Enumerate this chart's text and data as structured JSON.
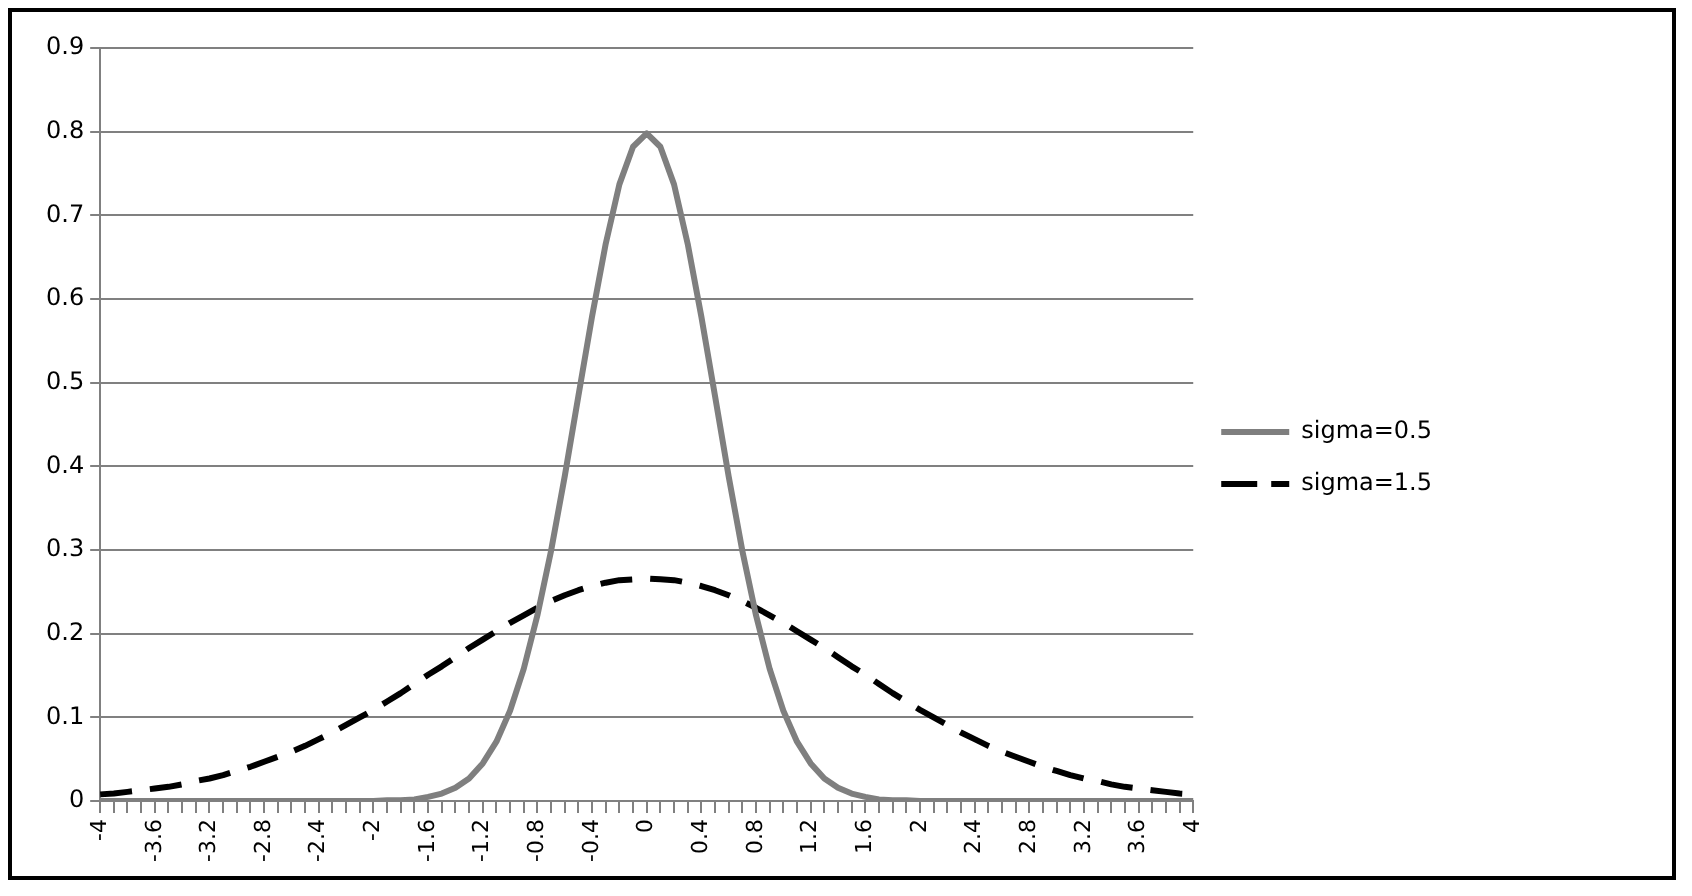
{
  "chart_data": {
    "type": "line",
    "categories": [
      "-4",
      null,
      null,
      null,
      "-3.6",
      null,
      null,
      null,
      "-3.2",
      null,
      null,
      null,
      "-2.8",
      null,
      null,
      null,
      "-2.4",
      null,
      null,
      null,
      "-2",
      null,
      null,
      null,
      "-1.6",
      null,
      null,
      null,
      "-1.2",
      null,
      null,
      null,
      "-0.8",
      null,
      null,
      null,
      "-0.4",
      null,
      null,
      null,
      "0",
      null,
      null,
      null,
      "0.4",
      null,
      null,
      null,
      "0.8",
      null,
      null,
      null,
      "1.2",
      null,
      null,
      null,
      "1.6",
      null,
      null,
      null,
      "2",
      null,
      null,
      null,
      "2.4",
      null,
      null,
      null,
      "2.8",
      null,
      null,
      null,
      "3.2",
      null,
      null,
      null,
      "3.6",
      null,
      null,
      null,
      "4"
    ],
    "series": [
      {
        "name": "sigma=0.5",
        "color": "#7f7f7f",
        "line_style": "solid",
        "values": [
          0,
          0,
          0,
          0,
          0,
          0,
          0,
          0,
          0,
          0,
          0,
          0,
          0,
          0,
          0,
          0,
          0,
          0,
          0,
          0,
          0,
          0.001,
          0.001,
          0.002,
          0.005,
          0.009,
          0.016,
          0.027,
          0.045,
          0.071,
          0.108,
          0.158,
          0.222,
          0.299,
          0.388,
          0.484,
          0.579,
          0.666,
          0.737,
          0.782,
          0.798,
          0.782,
          0.737,
          0.666,
          0.579,
          0.484,
          0.388,
          0.299,
          0.222,
          0.158,
          0.108,
          0.071,
          0.045,
          0.027,
          0.016,
          0.009,
          0.005,
          0.002,
          0.001,
          0.001,
          0,
          0,
          0,
          0,
          0,
          0,
          0,
          0,
          0,
          0,
          0,
          0,
          0,
          0,
          0,
          0,
          0,
          0,
          0,
          0,
          0
        ]
      },
      {
        "name": "sigma=1.5",
        "color": "#000000",
        "line_style": "dashed",
        "values": [
          0.008,
          0.009,
          0.011,
          0.013,
          0.015,
          0.017,
          0.02,
          0.024,
          0.027,
          0.031,
          0.036,
          0.041,
          0.047,
          0.053,
          0.059,
          0.066,
          0.074,
          0.082,
          0.091,
          0.1,
          0.109,
          0.119,
          0.129,
          0.14,
          0.151,
          0.161,
          0.172,
          0.183,
          0.193,
          0.203,
          0.213,
          0.222,
          0.231,
          0.239,
          0.246,
          0.252,
          0.257,
          0.261,
          0.264,
          0.265,
          0.266,
          0.265,
          0.264,
          0.261,
          0.257,
          0.252,
          0.246,
          0.239,
          0.231,
          0.222,
          0.213,
          0.203,
          0.193,
          0.183,
          0.172,
          0.161,
          0.151,
          0.14,
          0.129,
          0.119,
          0.109,
          0.1,
          0.091,
          0.082,
          0.074,
          0.066,
          0.059,
          0.053,
          0.047,
          0.041,
          0.036,
          0.031,
          0.027,
          0.024,
          0.02,
          0.017,
          0.015,
          0.013,
          0.011,
          0.009,
          0.008
        ]
      }
    ],
    "ylim": [
      0,
      0.9
    ],
    "yticks": [
      0,
      0.1,
      0.2,
      0.3,
      0.4,
      0.5,
      0.6,
      0.7,
      0.8,
      0.9
    ],
    "grid": "y",
    "legend": "right",
    "marker": "none"
  }
}
